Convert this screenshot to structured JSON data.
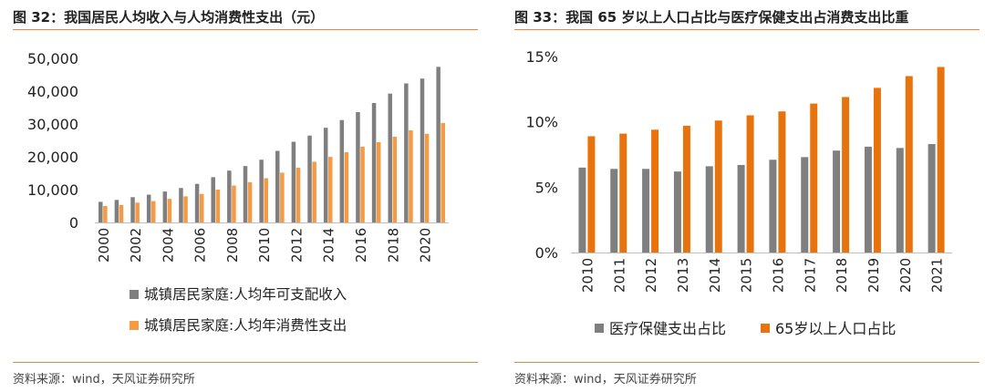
{
  "colors": {
    "gray": "#7f7f7f",
    "orange_light": "#f59a45",
    "orange_dark": "#e8720c",
    "accent": "#e8893a"
  },
  "chart_data": [
    {
      "type": "bar",
      "title": "图 32：我国居民人均收入与人均消费性支出（元）",
      "source": "资料来源：wind，天风证券研究所",
      "years": [
        2000,
        2001,
        2002,
        2003,
        2004,
        2005,
        2006,
        2007,
        2008,
        2009,
        2010,
        2011,
        2012,
        2013,
        2014,
        2015,
        2016,
        2017,
        2018,
        2019,
        2020,
        2021
      ],
      "tick_labels": [
        "2000",
        "2002",
        "2004",
        "2006",
        "2008",
        "2010",
        "2012",
        "2014",
        "2016",
        "2018",
        "2020"
      ],
      "y_ticks": [
        "0",
        "10,000",
        "20,000",
        "30,000",
        "40,000",
        "50,000"
      ],
      "ylim": [
        0,
        50000
      ],
      "series": [
        {
          "name": "城镇居民家庭:人均年可支配收入",
          "values": [
            6280,
            6860,
            7703,
            8472,
            9422,
            10493,
            11759,
            13786,
            15781,
            17175,
            19109,
            21810,
            24565,
            26467,
            28844,
            31195,
            33616,
            36396,
            39251,
            42359,
            43834,
            47412
          ]
        },
        {
          "name": "城镇居民家庭:人均年消费性支出",
          "values": [
            4998,
            5309,
            6030,
            6511,
            7182,
            7943,
            8697,
            9997,
            11243,
            12265,
            13471,
            15161,
            16674,
            18488,
            19968,
            21392,
            23079,
            24445,
            26112,
            28063,
            27007,
            30307
          ]
        }
      ]
    },
    {
      "type": "bar",
      "title": "图 33：我国 65 岁以上人口占比与医疗保健支出占消费支出比重",
      "source": "资料来源：wind，天风证券研究所",
      "categories": [
        "2010",
        "2011",
        "2012",
        "2013",
        "2014",
        "2015",
        "2016",
        "2017",
        "2018",
        "2019",
        "2020",
        "2021"
      ],
      "y_ticks": [
        "0%",
        "5%",
        "10%",
        "15%"
      ],
      "ylim": [
        0,
        15
      ],
      "series": [
        {
          "name": "医疗保健支出占比",
          "values": [
            6.5,
            6.4,
            6.4,
            6.2,
            6.6,
            6.7,
            7.1,
            7.3,
            7.8,
            8.1,
            8.0,
            8.3
          ]
        },
        {
          "name": "65岁以上人口占比",
          "values": [
            8.9,
            9.1,
            9.4,
            9.7,
            10.1,
            10.5,
            10.8,
            11.4,
            11.9,
            12.6,
            13.5,
            14.2
          ]
        }
      ]
    }
  ]
}
